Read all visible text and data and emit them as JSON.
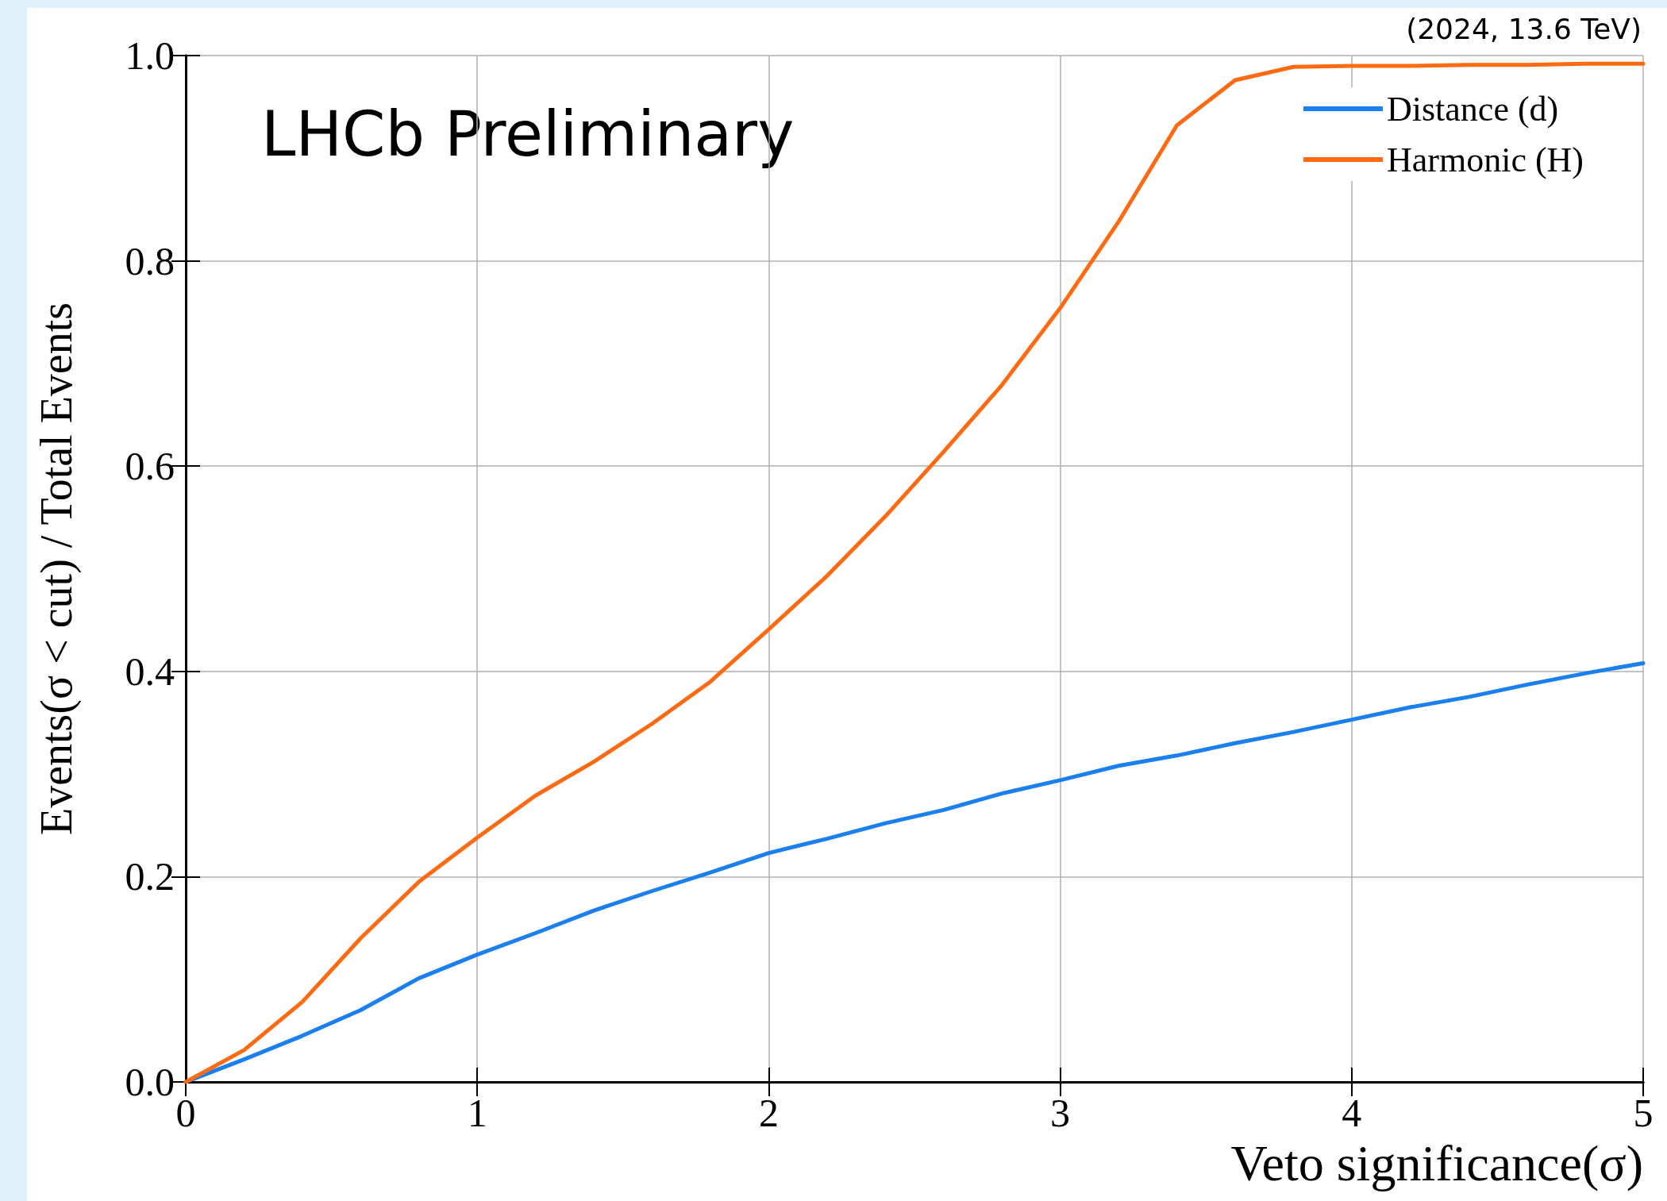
{
  "chart_data": {
    "type": "line",
    "xlabel": "Veto significance(σ)",
    "ylabel": "Events(σ < cut) / Total Events",
    "annotations": [
      "LHCb Preliminary",
      "(2024, 13.6 TeV)"
    ],
    "x": [
      0,
      0.2,
      0.4,
      0.6,
      0.8,
      1.0,
      1.2,
      1.4,
      1.6,
      1.8,
      2.0,
      2.2,
      2.4,
      2.6,
      2.8,
      3.0,
      3.2,
      3.4,
      3.6,
      3.8,
      4.0,
      4.2,
      4.4,
      4.6,
      4.8,
      5.0
    ],
    "series": [
      {
        "name": "Distance (d)",
        "color": "#1a7ff0",
        "values": [
          0,
          0.022,
          0.045,
          0.07,
          0.101,
          0.124,
          0.145,
          0.167,
          0.186,
          0.204,
          0.223,
          0.237,
          0.252,
          0.265,
          0.281,
          0.294,
          0.308,
          0.318,
          0.33,
          0.341,
          0.353,
          0.365,
          0.375,
          0.387,
          0.398,
          0.408
        ]
      },
      {
        "name": "Harmonic (H)",
        "color": "#ff6a13",
        "values": [
          0,
          0.031,
          0.078,
          0.14,
          0.195,
          0.238,
          0.279,
          0.312,
          0.349,
          0.39,
          0.441,
          0.493,
          0.551,
          0.614,
          0.679,
          0.754,
          0.838,
          0.932,
          0.976,
          0.989,
          0.99,
          0.99,
          0.991,
          0.991,
          0.992,
          0.992
        ]
      }
    ],
    "xlim": [
      0,
      5
    ],
    "xticks": [
      0,
      1,
      2,
      3,
      4,
      5
    ],
    "ylim": [
      0,
      1.0
    ],
    "yticks": [
      {
        "value": 0,
        "label": "0.0"
      },
      0.2,
      0.4,
      0.6,
      0.8,
      {
        "value": 1.0,
        "label": "1.0"
      }
    ],
    "grid": true,
    "legend": "top right",
    "marker": "none",
    "line_style": "solid"
  }
}
